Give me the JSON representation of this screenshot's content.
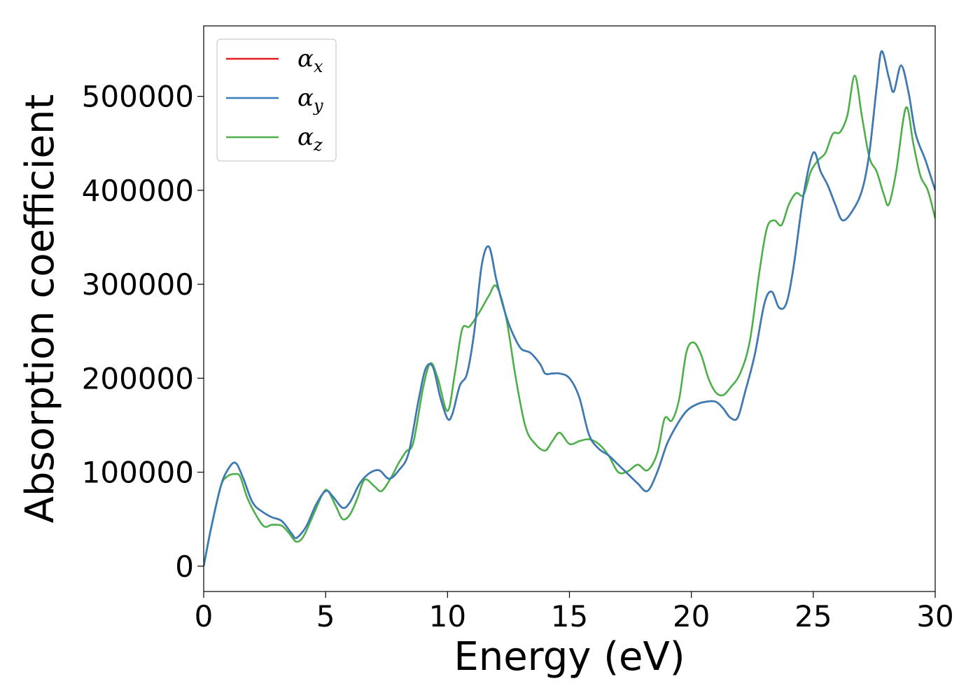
{
  "chart_data": {
    "type": "line",
    "xlabel": "Energy (eV)",
    "ylabel": "Absorption coefficient",
    "xlim": [
      0,
      30
    ],
    "ylim": [
      -27000,
      575000
    ],
    "xticks": [
      0,
      5,
      10,
      15,
      20,
      25,
      30
    ],
    "yticks": [
      0,
      100000,
      200000,
      300000,
      400000,
      500000
    ],
    "grid": false,
    "legend_position": "top-left",
    "series": [
      {
        "name": "α",
        "subscript": "x",
        "color": "#e41a1c",
        "x": [
          0,
          0.3,
          0.7,
          1.0,
          1.3,
          1.6,
          2.0,
          2.4,
          2.8,
          3.2,
          3.6,
          3.8,
          4.2,
          4.6,
          5.0,
          5.3,
          5.7,
          6.0,
          6.4,
          6.8,
          7.2,
          7.6,
          8.0,
          8.4,
          8.8,
          9.1,
          9.4,
          9.7,
          10.0,
          10.2,
          10.5,
          10.8,
          11.1,
          11.4,
          11.7,
          12.0,
          12.3,
          12.6,
          13.0,
          13.4,
          13.8,
          14.0,
          14.3,
          14.6,
          15.0,
          15.4,
          15.8,
          16.2,
          16.6,
          17.0,
          17.4,
          17.8,
          18.2,
          18.6,
          19.0,
          19.4,
          19.8,
          20.2,
          20.6,
          21.0,
          21.3,
          21.6,
          21.9,
          22.2,
          22.6,
          23.0,
          23.3,
          23.6,
          23.9,
          24.2,
          24.6,
          25.0,
          25.3,
          25.6,
          25.9,
          26.2,
          26.6,
          27.0,
          27.3,
          27.6,
          27.8,
          28.1,
          28.3,
          28.6,
          28.9,
          29.2,
          29.6,
          30.0
        ],
        "y": [
          0,
          40000,
          85000,
          103000,
          110000,
          95000,
          68000,
          58000,
          52000,
          48000,
          35000,
          30000,
          42000,
          65000,
          80000,
          74000,
          62000,
          68000,
          88000,
          99000,
          102000,
          93000,
          102000,
          120000,
          175000,
          210000,
          212000,
          180000,
          157000,
          162000,
          192000,
          205000,
          250000,
          320000,
          340000,
          305000,
          275000,
          252000,
          232000,
          227000,
          215000,
          205000,
          205000,
          205000,
          200000,
          180000,
          140000,
          125000,
          118000,
          108000,
          98000,
          88000,
          80000,
          100000,
          130000,
          150000,
          165000,
          172000,
          175000,
          175000,
          168000,
          158000,
          158000,
          185000,
          225000,
          280000,
          292000,
          275000,
          280000,
          320000,
          395000,
          440000,
          420000,
          405000,
          385000,
          368000,
          378000,
          400000,
          440000,
          510000,
          548000,
          520000,
          505000,
          533000,
          505000,
          460000,
          432000,
          400000
        ]
      },
      {
        "name": "α",
        "subscript": "y",
        "color": "#377eb8",
        "x": [
          0,
          0.3,
          0.7,
          1.0,
          1.3,
          1.6,
          2.0,
          2.4,
          2.8,
          3.2,
          3.6,
          3.8,
          4.2,
          4.6,
          5.0,
          5.3,
          5.7,
          6.0,
          6.4,
          6.8,
          7.2,
          7.6,
          8.0,
          8.4,
          8.8,
          9.1,
          9.4,
          9.7,
          10.0,
          10.2,
          10.5,
          10.8,
          11.1,
          11.4,
          11.7,
          12.0,
          12.3,
          12.6,
          13.0,
          13.4,
          13.8,
          14.0,
          14.3,
          14.6,
          15.0,
          15.4,
          15.8,
          16.2,
          16.6,
          17.0,
          17.4,
          17.8,
          18.2,
          18.6,
          19.0,
          19.4,
          19.8,
          20.2,
          20.6,
          21.0,
          21.3,
          21.6,
          21.9,
          22.2,
          22.6,
          23.0,
          23.3,
          23.6,
          23.9,
          24.2,
          24.6,
          25.0,
          25.3,
          25.6,
          25.9,
          26.2,
          26.6,
          27.0,
          27.3,
          27.6,
          27.8,
          28.1,
          28.3,
          28.6,
          28.9,
          29.2,
          29.6,
          30.0
        ],
        "y": [
          0,
          40000,
          85000,
          103000,
          110000,
          95000,
          68000,
          58000,
          52000,
          48000,
          35000,
          30000,
          42000,
          65000,
          80000,
          74000,
          62000,
          68000,
          88000,
          99000,
          102000,
          93000,
          102000,
          120000,
          175000,
          210000,
          212000,
          180000,
          157000,
          162000,
          192000,
          205000,
          250000,
          320000,
          340000,
          305000,
          275000,
          252000,
          232000,
          227000,
          215000,
          205000,
          205000,
          205000,
          200000,
          180000,
          140000,
          125000,
          118000,
          108000,
          98000,
          88000,
          80000,
          100000,
          130000,
          150000,
          165000,
          172000,
          175000,
          175000,
          168000,
          158000,
          158000,
          185000,
          225000,
          280000,
          292000,
          275000,
          280000,
          320000,
          395000,
          440000,
          420000,
          405000,
          385000,
          368000,
          378000,
          400000,
          440000,
          510000,
          548000,
          520000,
          505000,
          533000,
          505000,
          460000,
          432000,
          400000
        ]
      },
      {
        "name": "α",
        "subscript": "z",
        "color": "#4daf4a",
        "x": [
          0,
          0.3,
          0.7,
          1.0,
          1.3,
          1.5,
          1.8,
          2.2,
          2.5,
          2.8,
          3.2,
          3.5,
          3.8,
          4.1,
          4.5,
          4.9,
          5.1,
          5.4,
          5.7,
          6.0,
          6.3,
          6.6,
          7.0,
          7.3,
          7.7,
          8.0,
          8.3,
          8.6,
          9.0,
          9.3,
          9.6,
          10.0,
          10.3,
          10.6,
          10.9,
          11.3,
          11.7,
          12.0,
          12.4,
          12.8,
          13.2,
          13.6,
          14.0,
          14.3,
          14.6,
          15.0,
          15.4,
          15.8,
          16.2,
          16.6,
          17.0,
          17.4,
          17.8,
          18.2,
          18.6,
          18.9,
          19.2,
          19.5,
          19.8,
          20.1,
          20.4,
          20.7,
          21.0,
          21.3,
          21.6,
          22.0,
          22.4,
          22.8,
          23.1,
          23.4,
          23.7,
          24.0,
          24.3,
          24.6,
          24.9,
          25.2,
          25.5,
          25.8,
          26.1,
          26.4,
          26.7,
          27.0,
          27.3,
          27.6,
          27.9,
          28.1,
          28.4,
          28.8,
          29.1,
          29.4,
          29.7,
          30.0
        ],
        "y": [
          0,
          40000,
          85000,
          96000,
          98000,
          95000,
          72000,
          52000,
          42000,
          44000,
          43000,
          35000,
          26000,
          32000,
          55000,
          78000,
          80000,
          65000,
          50000,
          55000,
          72000,
          92000,
          85000,
          80000,
          95000,
          110000,
          122000,
          132000,
          190000,
          216000,
          200000,
          165000,
          205000,
          252000,
          255000,
          270000,
          288000,
          298000,
          265000,
          200000,
          148000,
          130000,
          123000,
          133000,
          142000,
          130000,
          133000,
          135000,
          130000,
          118000,
          100000,
          101000,
          108000,
          102000,
          120000,
          157000,
          155000,
          178000,
          228000,
          238000,
          225000,
          200000,
          185000,
          182000,
          190000,
          205000,
          240000,
          315000,
          360000,
          368000,
          363000,
          385000,
          397000,
          395000,
          420000,
          432000,
          440000,
          460000,
          462000,
          480000,
          522000,
          478000,
          435000,
          420000,
          395000,
          385000,
          420000,
          488000,
          450000,
          415000,
          400000,
          370000
        ]
      }
    ]
  }
}
